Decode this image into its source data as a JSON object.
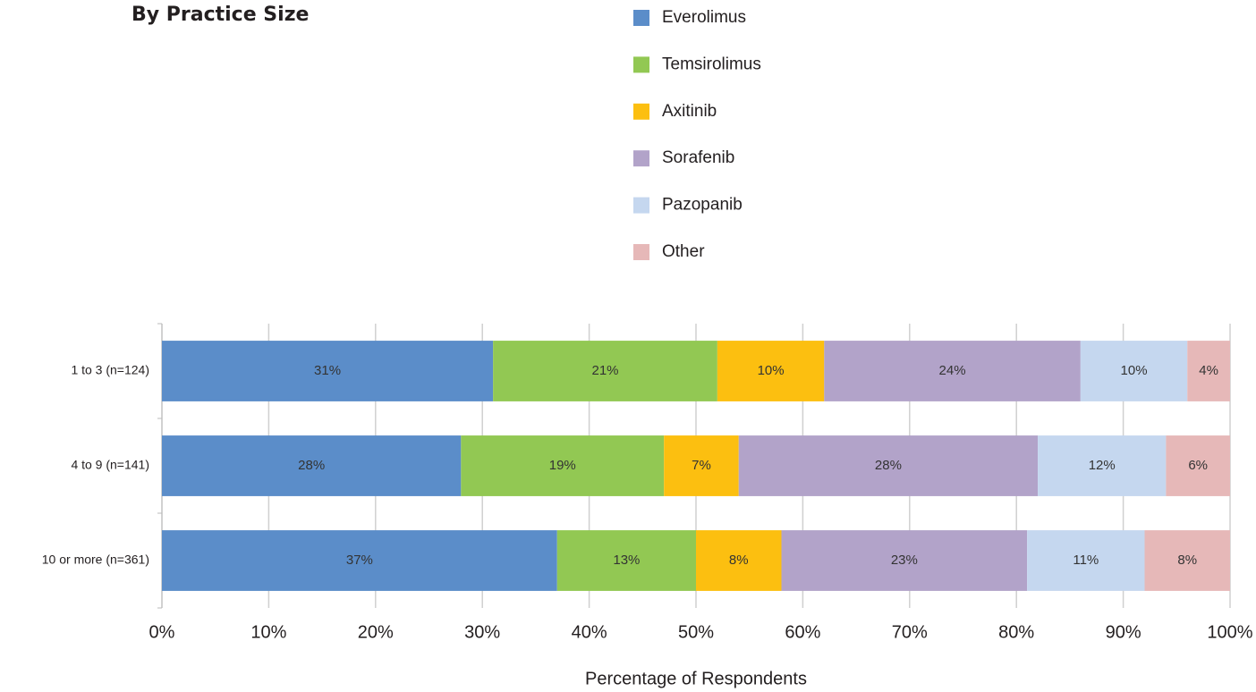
{
  "chart_data": {
    "type": "stacked-bar-horizontal",
    "title": "By Practice Size",
    "x_label": "Percentage of Respondents",
    "categories": [
      "1 to 3 (n=124)",
      "4 to 9 (n=141)",
      "10 or more (n=361)"
    ],
    "series": [
      {
        "name": "Everolimus",
        "color": "#5b8dc9",
        "values": [
          31,
          28,
          37
        ],
        "value_labels": [
          "31%",
          "28%",
          "37%"
        ]
      },
      {
        "name": "Temsirolimus",
        "color": "#92c853",
        "values": [
          21,
          19,
          13
        ],
        "value_labels": [
          "21%",
          "19%",
          "13%"
        ]
      },
      {
        "name": "Axitinib",
        "color": "#fcbf10",
        "values": [
          10,
          7,
          8
        ],
        "value_labels": [
          "10%",
          "7%",
          "8%"
        ]
      },
      {
        "name": "Sorafenib",
        "color": "#b2a3c9",
        "values": [
          24,
          28,
          23
        ],
        "value_labels": [
          "24%",
          "28%",
          "23%"
        ]
      },
      {
        "name": "Pazopanib",
        "color": "#c5d7ef",
        "values": [
          10,
          12,
          11
        ],
        "value_labels": [
          "10%",
          "12%",
          "11%"
        ]
      },
      {
        "name": "Other",
        "color": "#e6b8b8",
        "values": [
          4,
          6,
          8
        ],
        "value_labels": [
          "4%",
          "6%",
          "8%"
        ]
      }
    ],
    "xlim": [
      0,
      100
    ],
    "xticks": [
      {
        "value": 0,
        "label": "0%"
      },
      {
        "value": 10,
        "label": "10%"
      },
      {
        "value": 20,
        "label": "20%"
      },
      {
        "value": 30,
        "label": "30%"
      },
      {
        "value": 40,
        "label": "40%"
      },
      {
        "value": 50,
        "label": "50%"
      },
      {
        "value": 60,
        "label": "60%"
      },
      {
        "value": 70,
        "label": "70%"
      },
      {
        "value": 80,
        "label": "80%"
      },
      {
        "value": 90,
        "label": "90%"
      },
      {
        "value": 100,
        "label": "100%"
      }
    ],
    "grid": true,
    "legend": "top"
  }
}
